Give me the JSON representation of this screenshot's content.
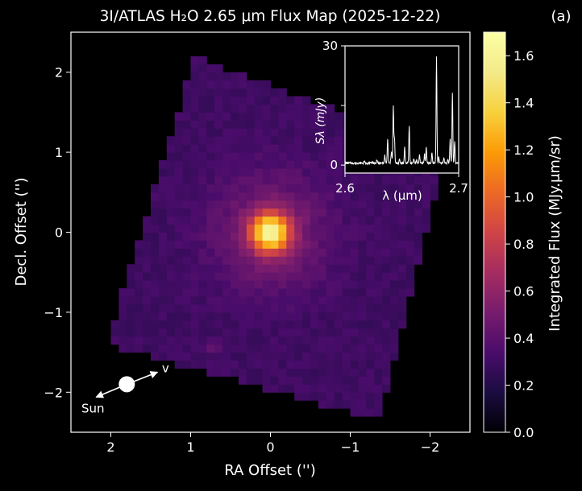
{
  "chart_data": [
    {
      "type": "heatmap",
      "title": "3I/ATLAS H₂O 2.65 μm Flux Map (2025-12-22)",
      "panel_label": "(a)",
      "xlabel": "RA Offset ('')",
      "ylabel": "Decl. Offset ('')",
      "xlim": [
        2.5,
        -2.5
      ],
      "ylim": [
        -2.5,
        2.5
      ],
      "xticks": [
        2,
        1,
        0,
        -1,
        -2
      ],
      "xtick_labels": [
        "2",
        "1",
        "0",
        "−1",
        "−2"
      ],
      "yticks": [
        2,
        1,
        0,
        -1,
        -2
      ],
      "ytick_labels": [
        "2",
        "1",
        "0",
        "−1",
        "−2"
      ],
      "colormap": "inferno-like",
      "colorbar": {
        "label": "Integrated Flux (MJy.μm/sr)",
        "range": [
          0.0,
          1.7
        ],
        "ticks": [
          0.0,
          0.2,
          0.4,
          0.6,
          0.8,
          1.0,
          1.2,
          1.4,
          1.6
        ],
        "tick_labels": [
          "0.0",
          "0.2",
          "0.4",
          "0.6",
          "0.8",
          "1.0",
          "1.2",
          "1.4",
          "1.6"
        ]
      },
      "background_level": 0.3,
      "peak": {
        "ra": 0.0,
        "dec": 0.0,
        "value": 1.7
      },
      "field_corners": [
        [
          0.95,
          2.2
        ],
        [
          -2.2,
          1.0
        ],
        [
          -1.35,
          -2.35
        ],
        [
          2.05,
          -1.4
        ]
      ],
      "compass": {
        "sun_label": "Sun",
        "velocity_label": "v",
        "nucleus_marker": {
          "ra": 1.8,
          "dec": -1.9
        }
      },
      "secondary_source": {
        "ra": 0.7,
        "dec": -1.45,
        "value": 0.45
      }
    },
    {
      "type": "line",
      "inset": true,
      "xlabel": "λ (μm)",
      "ylabel": "Sλ (mJy)",
      "xlim": [
        2.6,
        2.7
      ],
      "ylim": [
        -2,
        30
      ],
      "xticks": [
        2.6,
        2.7
      ],
      "xtick_labels": [
        "2.6",
        "2.7"
      ],
      "yticks": [
        0,
        15,
        30
      ],
      "ytick_labels": [
        "0",
        "",
        "30"
      ],
      "baseline": 0.5,
      "line_color": "#ffffff",
      "lines": [
        {
          "x": 2.617,
          "y": 1.0
        },
        {
          "x": 2.624,
          "y": 0.8
        },
        {
          "x": 2.628,
          "y": 1.3
        },
        {
          "x": 2.635,
          "y": 2.5
        },
        {
          "x": 2.6375,
          "y": 6.5
        },
        {
          "x": 2.6405,
          "y": 1.6
        },
        {
          "x": 2.641,
          "y": 3.0
        },
        {
          "x": 2.6425,
          "y": 15.0
        },
        {
          "x": 2.6435,
          "y": 7.0
        },
        {
          "x": 2.648,
          "y": 1.5
        },
        {
          "x": 2.6525,
          "y": 4.5
        },
        {
          "x": 2.6565,
          "y": 10.0
        },
        {
          "x": 2.6605,
          "y": 1.6
        },
        {
          "x": 2.663,
          "y": 1.2
        },
        {
          "x": 2.6655,
          "y": 2.5
        },
        {
          "x": 2.67,
          "y": 2.8
        },
        {
          "x": 2.6715,
          "y": 4.6
        },
        {
          "x": 2.6765,
          "y": 3.0
        },
        {
          "x": 2.6805,
          "y": 27.5
        },
        {
          "x": 2.6825,
          "y": 2.0
        },
        {
          "x": 2.687,
          "y": 1.8
        },
        {
          "x": 2.6905,
          "y": 1.5
        },
        {
          "x": 2.6925,
          "y": 6.5
        },
        {
          "x": 2.6945,
          "y": 18.0
        },
        {
          "x": 2.6965,
          "y": 6.0
        }
      ]
    }
  ]
}
